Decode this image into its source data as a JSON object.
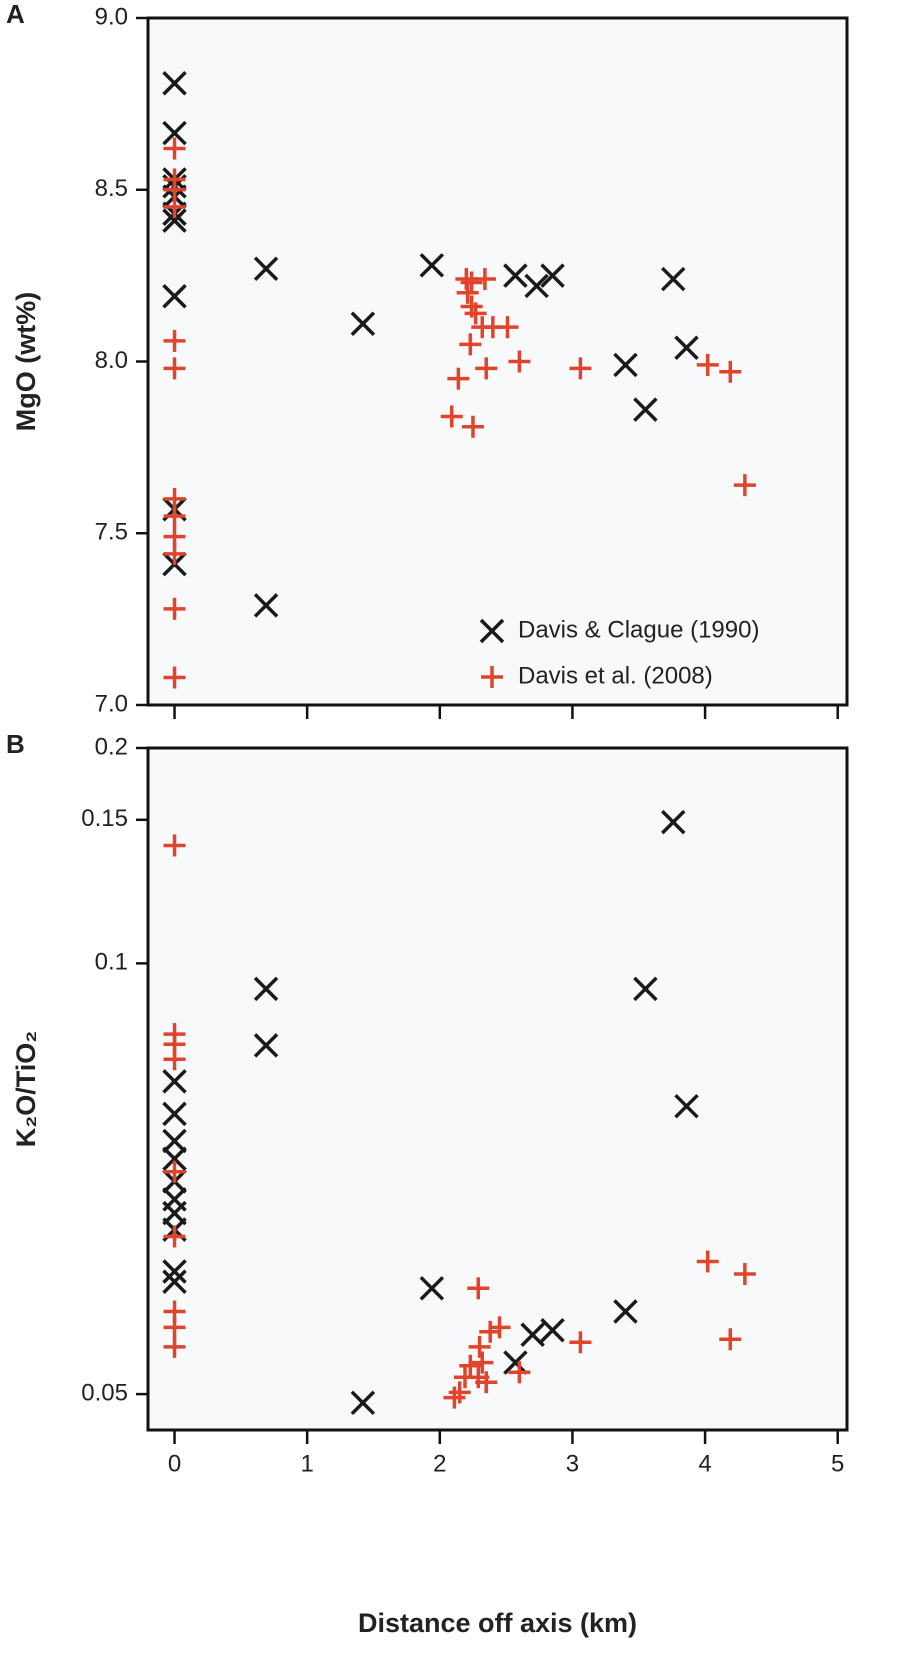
{
  "chart_data": [
    {
      "type": "scatter",
      "panel_label": "A",
      "ylabel": "MgO (wt%)",
      "xlim": [
        -0.2,
        5.07
      ],
      "xticks": [
        0,
        1,
        2,
        3,
        4,
        5
      ],
      "xtick_labels": false,
      "ylim": [
        7,
        9
      ],
      "yticks": [
        {
          "value": 7,
          "label": "7.0"
        },
        {
          "value": 7.5,
          "label": "7.5"
        },
        {
          "value": 8,
          "label": "8.0"
        },
        {
          "value": 8.5,
          "label": "8.5"
        },
        {
          "value": 9,
          "label": "9.0"
        }
      ],
      "legend": "lower right",
      "series": [
        {
          "name": "Davis & Clague (1990)",
          "color": "#1a1a1a",
          "marker": "x",
          "x": [
            0,
            0,
            0,
            0,
            0,
            0,
            0,
            0,
            0,
            0,
            0.69,
            0.69,
            1.42,
            1.94,
            2.57,
            2.73,
            2.85,
            3.4,
            3.55,
            3.76,
            3.86
          ],
          "values": [
            8.81,
            8.665,
            8.53,
            8.51,
            8.48,
            8.43,
            8.41,
            8.19,
            7.57,
            7.41,
            8.27,
            7.29,
            8.11,
            8.28,
            8.25,
            8.22,
            8.25,
            7.99,
            7.86,
            8.24,
            8.04
          ]
        },
        {
          "name": "Davis et al. (2008)",
          "color": "#e0442a",
          "marker": "+",
          "x": [
            0,
            0,
            0,
            0,
            0,
            0,
            0,
            0,
            0,
            0,
            0,
            0,
            2.2,
            2.24,
            2.34,
            2.21,
            2.24,
            2.27,
            2.32,
            2.4,
            2.51,
            2.23,
            2.35,
            2.6,
            3.06,
            2.14,
            2.09,
            2.25,
            4.02,
            4.19,
            4.3
          ],
          "values": [
            8.62,
            8.53,
            8.5,
            8.45,
            8.06,
            7.98,
            7.6,
            7.55,
            7.49,
            7.44,
            7.28,
            7.08,
            8.24,
            8.23,
            8.24,
            8.2,
            8.16,
            8.14,
            8.1,
            8.1,
            8.1,
            8.05,
            7.98,
            8.0,
            7.98,
            7.95,
            7.84,
            7.81,
            7.99,
            7.97,
            7.64
          ]
        }
      ]
    },
    {
      "type": "scatter",
      "panel_label": "B",
      "ylabel": "K₂O/TiO₂",
      "xlabel": "Distance off axis (km)",
      "xlim": [
        -0.2,
        5.07
      ],
      "xticks": [
        0,
        1,
        2,
        3,
        4,
        5
      ],
      "xtick_labels": true,
      "yscale": "reciprocal",
      "ylim": [
        0.048,
        0.2
      ],
      "yticks": [
        0.05,
        0.1,
        0.15,
        0.2
      ],
      "series": [
        {
          "color": "#1a1a1a",
          "marker": "x",
          "x": [
            0,
            0,
            0,
            0,
            0,
            0,
            0,
            0,
            0,
            0,
            0.69,
            0.69,
            1.42,
            1.94,
            2.57,
            2.7,
            2.85,
            3.4,
            3.55,
            3.76,
            3.86
          ],
          "values": [
            0.0785,
            0.0741,
            0.0708,
            0.0688,
            0.0664,
            0.0646,
            0.0633,
            0.0618,
            0.0583,
            0.0575,
            0.0944,
            0.084,
            0.0495,
            0.057,
            0.0519,
            0.0537,
            0.054,
            0.0553,
            0.0944,
            0.1488,
            0.0751
          ]
        },
        {
          "color": "#e0442a",
          "marker": "+",
          "x": [
            0,
            0,
            0,
            0,
            0,
            0,
            0,
            0,
            0,
            2.29,
            2.3,
            2.38,
            2.45,
            2.32,
            2.23,
            2.19,
            2.29,
            2.15,
            2.11,
            2.35,
            2.6,
            3.06,
            4.02,
            4.19,
            4.3
          ],
          "values": [
            0.1377,
            0.0859,
            0.0842,
            0.0818,
            0.0674,
            0.0612,
            0.0553,
            0.0542,
            0.0529,
            0.057,
            0.0529,
            0.0539,
            0.0542,
            0.0519,
            0.0517,
            0.051,
            0.051,
            0.0501,
            0.0498,
            0.0507,
            0.0513,
            0.0532,
            0.0591,
            0.0534,
            0.0581
          ]
        }
      ]
    }
  ]
}
